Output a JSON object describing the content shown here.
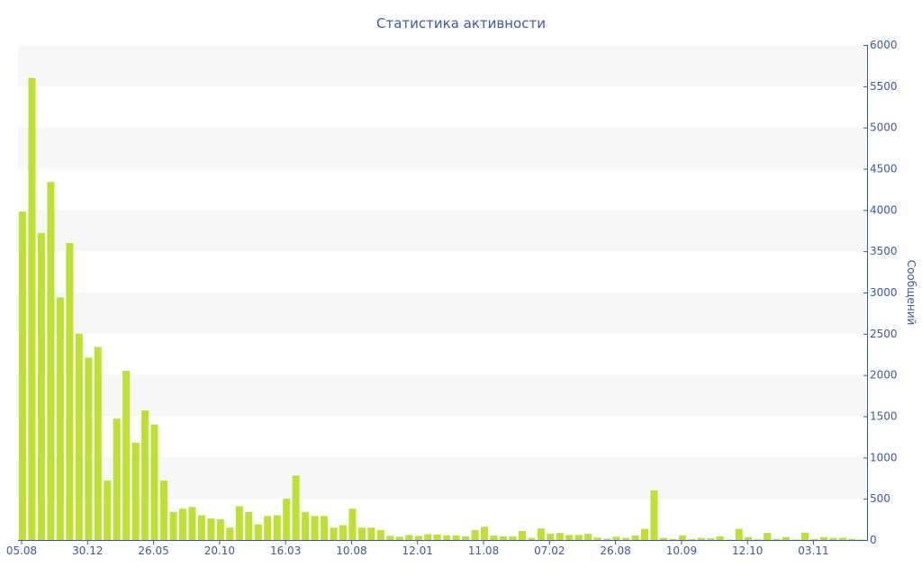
{
  "chart_data": {
    "type": "bar",
    "title": "Статистика активности",
    "xlabel": "",
    "ylabel": "Сообщений",
    "ylim": [
      0,
      6000
    ],
    "y_ticks": [
      0,
      500,
      1000,
      1500,
      2000,
      2500,
      3000,
      3500,
      4000,
      4500,
      5000,
      5500,
      6000
    ],
    "y_axis_side": "right",
    "grid": "alternating horizontal bands",
    "legend": "none",
    "bar_color": "#bde032",
    "band_color": "#f7f7f7",
    "axis_color": "#3e57a3",
    "categories": [
      "05.08",
      "",
      "",
      "",
      "",
      "",
      "",
      "30.12",
      "",
      "",
      "",
      "",
      "",
      "",
      "26.05",
      "",
      "",
      "",
      "",
      "",
      "",
      "20.10",
      "",
      "",
      "",
      "",
      "",
      "",
      "16.03",
      "",
      "",
      "",
      "",
      "",
      "",
      "10.08",
      "",
      "",
      "",
      "",
      "",
      "",
      "12.01",
      "",
      "",
      "",
      "",
      "",
      "",
      "11.08",
      "",
      "",
      "",
      "",
      "",
      "",
      "07.02",
      "",
      "",
      "",
      "",
      "",
      "",
      "26.08",
      "",
      "",
      "",
      "",
      "",
      "",
      "10.09",
      "",
      "",
      "",
      "",
      "",
      "",
      "12.10",
      "",
      "",
      "",
      "",
      "",
      "",
      "03.11",
      "",
      "",
      "",
      "",
      ""
    ],
    "values": [
      3980,
      5600,
      3720,
      4340,
      2940,
      3600,
      2500,
      2210,
      2340,
      720,
      1470,
      2050,
      1180,
      1570,
      1400,
      720,
      340,
      380,
      400,
      300,
      260,
      250,
      150,
      410,
      340,
      190,
      290,
      300,
      500,
      780,
      340,
      290,
      290,
      150,
      180,
      380,
      150,
      150,
      120,
      50,
      40,
      60,
      50,
      70,
      65,
      55,
      55,
      45,
      120,
      160,
      55,
      45,
      45,
      110,
      25,
      140,
      75,
      85,
      60,
      60,
      75,
      30,
      15,
      40,
      25,
      55,
      135,
      600,
      25,
      10,
      55,
      10,
      25,
      20,
      45,
      5,
      135,
      35,
      8,
      85,
      12,
      35,
      5,
      90,
      12,
      35,
      25,
      28,
      12,
      5
    ]
  }
}
